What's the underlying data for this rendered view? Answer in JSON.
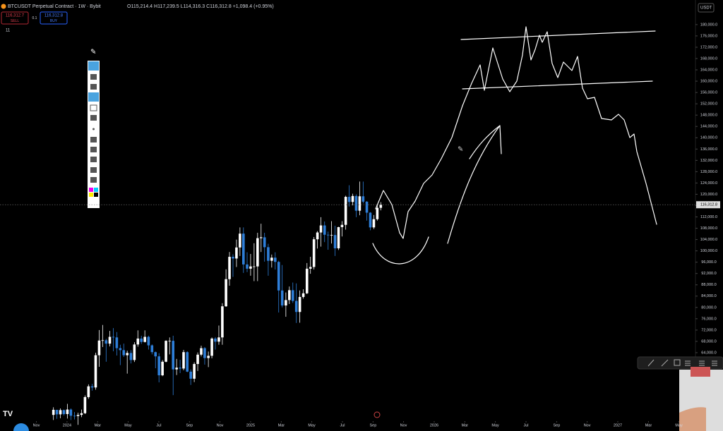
{
  "header": {
    "symbol": "BTCUSDT Perpetual Contract · 1W · Bybit",
    "ohlc": "O115,214.4 H117,239.5 L114,316.3 C116,312.8 +1,098.4 (+0.95%)",
    "sell_price": "116,312.7",
    "sell": "SELL",
    "spread": "0.1",
    "buy_price": "116,312.8",
    "buy": "BUY",
    "indicators": "11",
    "currency": "USDT"
  },
  "chart_data": {
    "type": "candlestick",
    "up_color": "#ffffff",
    "down_color": "#2e7ed8",
    "x": [
      2023.926,
      2023.945,
      2023.964,
      2023.983,
      2024.002,
      2024.021,
      2024.041,
      2024.06,
      2024.079,
      2024.098,
      2024.117,
      2024.137,
      2024.156,
      2024.175,
      2024.194,
      2024.213,
      2024.233,
      2024.252,
      2024.271,
      2024.29,
      2024.309,
      2024.328,
      2024.348,
      2024.367,
      2024.386,
      2024.405,
      2024.424,
      2024.444,
      2024.463,
      2024.482,
      2024.501,
      2024.52,
      2024.539,
      2024.559,
      2024.578,
      2024.597,
      2024.616,
      2024.635,
      2024.655,
      2024.674,
      2024.693,
      2024.712,
      2024.731,
      2024.75,
      2024.77,
      2024.789,
      2024.808,
      2024.827,
      2024.846,
      2024.866,
      2024.885,
      2024.904,
      2024.923,
      2024.942,
      2024.961,
      2024.981,
      2025.0,
      2025.019,
      2025.038,
      2025.057,
      2025.076,
      2025.096,
      2025.115,
      2025.134,
      2025.153,
      2025.172,
      2025.192,
      2025.211,
      2025.23,
      2025.249,
      2025.268,
      2025.287,
      2025.307,
      2025.326,
      2025.345,
      2025.364,
      2025.383,
      2025.403,
      2025.422,
      2025.441,
      2025.46,
      2025.479,
      2025.498,
      2025.518,
      2025.537,
      2025.556,
      2025.575,
      2025.594,
      2025.613,
      2025.633,
      2025.652,
      2025.671,
      2025.69,
      2025.709
    ],
    "open": [
      42000,
      43800,
      42200,
      43700,
      42300,
      43900,
      41700,
      41600,
      42000,
      42600,
      48300,
      52100,
      51700,
      63100,
      68300,
      68400,
      67200,
      69600,
      69400,
      65600,
      64900,
      63100,
      63900,
      61400,
      66900,
      69000,
      67800,
      69600,
      66600,
      64200,
      62700,
      56000,
      60800,
      68200,
      68200,
      58100,
      58700,
      58400,
      64200,
      57300,
      54800,
      60000,
      63300,
      65600,
      62100,
      62900,
      69000,
      67900,
      69400,
      80400,
      90000,
      97900,
      97300,
      101200,
      106100,
      95200,
      93700,
      94500,
      94500,
      104500,
      104800,
      101300,
      96500,
      97600,
      96100,
      86000,
      80700,
      82600,
      86100,
      82300,
      78400,
      83700,
      85000,
      93700,
      94300,
      104100,
      106500,
      109000,
      105700,
      105600,
      105600,
      100900,
      108400,
      109200,
      119100,
      117300,
      119400,
      114200,
      119300,
      117400,
      113500,
      108300,
      111200,
      115214.4
    ],
    "high": [
      44700,
      43600,
      44300,
      43900,
      45900,
      44300,
      43000,
      42800,
      43900,
      48900,
      52800,
      53000,
      64000,
      72000,
      73800,
      68900,
      71700,
      72700,
      71300,
      66800,
      67200,
      64700,
      64900,
      67700,
      71900,
      70000,
      71900,
      70000,
      66900,
      64400,
      63800,
      61400,
      68400,
      69400,
      70000,
      61800,
      61500,
      65000,
      64500,
      58100,
      60600,
      64100,
      66500,
      66000,
      64400,
      69400,
      69500,
      73600,
      81500,
      93500,
      99600,
      98800,
      104000,
      108300,
      108300,
      99500,
      98900,
      102700,
      106400,
      109600,
      106400,
      102500,
      98700,
      99500,
      96500,
      95000,
      85300,
      87400,
      88800,
      88500,
      86000,
      86400,
      95700,
      97900,
      104900,
      107000,
      111900,
      110400,
      106800,
      110500,
      108900,
      108500,
      110500,
      119500,
      123200,
      120200,
      120000,
      124500,
      124500,
      117600,
      113700,
      112700,
      116400,
      117239.5
    ],
    "low": [
      40200,
      40600,
      40800,
      41800,
      40700,
      40200,
      40400,
      38500,
      41200,
      42300,
      47700,
      50600,
      50900,
      59000,
      66000,
      60800,
      66200,
      64500,
      63000,
      59600,
      62500,
      56600,
      60200,
      60700,
      66100,
      67100,
      67600,
      65100,
      63400,
      58500,
      53500,
      55700,
      60600,
      63400,
      49000,
      56100,
      56800,
      57800,
      57100,
      52600,
      53600,
      57500,
      62700,
      59800,
      58900,
      62000,
      65100,
      66800,
      66800,
      80200,
      87700,
      90800,
      94300,
      98200,
      92200,
      92500,
      91200,
      89300,
      89300,
      99600,
      96200,
      91200,
      94100,
      93400,
      78200,
      80000,
      76700,
      81200,
      81600,
      74500,
      74600,
      83100,
      84700,
      91900,
      93400,
      100800,
      101500,
      103100,
      100400,
      102600,
      98200,
      100300,
      105100,
      107500,
      115700,
      116100,
      111900,
      112600,
      116800,
      110700,
      107300,
      107700,
      110700,
      114316.3
    ],
    "close": [
      43800,
      42200,
      43700,
      42300,
      43900,
      41700,
      41600,
      42000,
      42600,
      48300,
      52100,
      51700,
      63100,
      68300,
      68400,
      67200,
      69600,
      69400,
      65600,
      64900,
      63100,
      63900,
      61400,
      66900,
      69000,
      67800,
      69600,
      66600,
      64200,
      62700,
      56000,
      60800,
      68200,
      68200,
      58100,
      58700,
      58400,
      64200,
      57300,
      54800,
      60000,
      63300,
      65600,
      62100,
      62900,
      69000,
      67900,
      69400,
      80400,
      90000,
      97900,
      97300,
      101200,
      106100,
      95200,
      93700,
      94500,
      94500,
      104500,
      104800,
      101300,
      96500,
      97600,
      96100,
      86000,
      80700,
      82600,
      86100,
      82300,
      78400,
      83700,
      85000,
      93700,
      94300,
      104100,
      106500,
      109000,
      105700,
      105600,
      105600,
      100900,
      108400,
      109200,
      119100,
      117300,
      119400,
      114200,
      119300,
      117400,
      113500,
      108300,
      111200,
      115214.4,
      116312.8
    ],
    "last_price": {
      "value": 116312.8,
      "label": "116,312.8"
    },
    "xlim": [
      2023.635,
      2027.423
    ],
    "xticks": [
      {
        "value": 2023.833,
        "label": "Nov"
      },
      {
        "value": 2024,
        "label": "2024"
      },
      {
        "value": 2024.167,
        "label": "Mar"
      },
      {
        "value": 2024.333,
        "label": "May"
      },
      {
        "value": 2024.5,
        "label": "Jul"
      },
      {
        "value": 2024.667,
        "label": "Sep"
      },
      {
        "value": 2024.833,
        "label": "Nov"
      },
      {
        "value": 2025,
        "label": "2025"
      },
      {
        "value": 2025.167,
        "label": "Mar"
      },
      {
        "value": 2025.333,
        "label": "May"
      },
      {
        "value": 2025.5,
        "label": "Jul"
      },
      {
        "value": 2025.667,
        "label": "Sep"
      },
      {
        "value": 2025.833,
        "label": "Nov"
      },
      {
        "value": 2026,
        "label": "2026"
      },
      {
        "value": 2026.167,
        "label": "Mar"
      },
      {
        "value": 2026.333,
        "label": "May"
      },
      {
        "value": 2026.5,
        "label": "Jul"
      },
      {
        "value": 2026.667,
        "label": "Sep"
      },
      {
        "value": 2026.833,
        "label": "Nov"
      },
      {
        "value": 2027,
        "label": "2027"
      },
      {
        "value": 2027.167,
        "label": "Mar"
      },
      {
        "value": 2027.333,
        "label": "May"
      }
    ],
    "ylim": [
      40300,
      188700
    ],
    "yticks": [
      {
        "value": 64000,
        "label": "64,000.0"
      },
      {
        "value": 68000,
        "label": "68,000.0"
      },
      {
        "value": 72000,
        "label": "72,000.0"
      },
      {
        "value": 76000,
        "label": "76,000.0"
      },
      {
        "value": 80000,
        "label": "80,000.0"
      },
      {
        "value": 84000,
        "label": "84,000.0"
      },
      {
        "value": 88000,
        "label": "88,000.0"
      },
      {
        "value": 92000,
        "label": "92,000.0"
      },
      {
        "value": 96000,
        "label": "96,000.0"
      },
      {
        "value": 100000,
        "label": "100,000.0"
      },
      {
        "value": 104000,
        "label": "104,000.0"
      },
      {
        "value": 108000,
        "label": "108,000.0"
      },
      {
        "value": 112000,
        "label": "112,000.0"
      },
      {
        "value": 116000,
        "label": "116,000.0"
      },
      {
        "value": 120000,
        "label": "120,000.0"
      },
      {
        "value": 124000,
        "label": "124,000.0"
      },
      {
        "value": 128000,
        "label": "128,000.0"
      },
      {
        "value": 132000,
        "label": "132,000.0"
      },
      {
        "value": 136000,
        "label": "136,000.0"
      },
      {
        "value": 140000,
        "label": "140,000.0"
      },
      {
        "value": 144000,
        "label": "144,000.0"
      },
      {
        "value": 148000,
        "label": "148,000.0"
      },
      {
        "value": 152000,
        "label": "152,000.0"
      },
      {
        "value": 156000,
        "label": "156,000.0"
      },
      {
        "value": 160000,
        "label": "160,000.0"
      },
      {
        "value": 164000,
        "label": "164,000.0"
      },
      {
        "value": 168000,
        "label": "168,000.0"
      },
      {
        "value": 172000,
        "label": "172,000.0"
      },
      {
        "value": 176000,
        "label": "176,000.0"
      },
      {
        "value": 180000,
        "label": "180,000.0"
      }
    ]
  }
}
